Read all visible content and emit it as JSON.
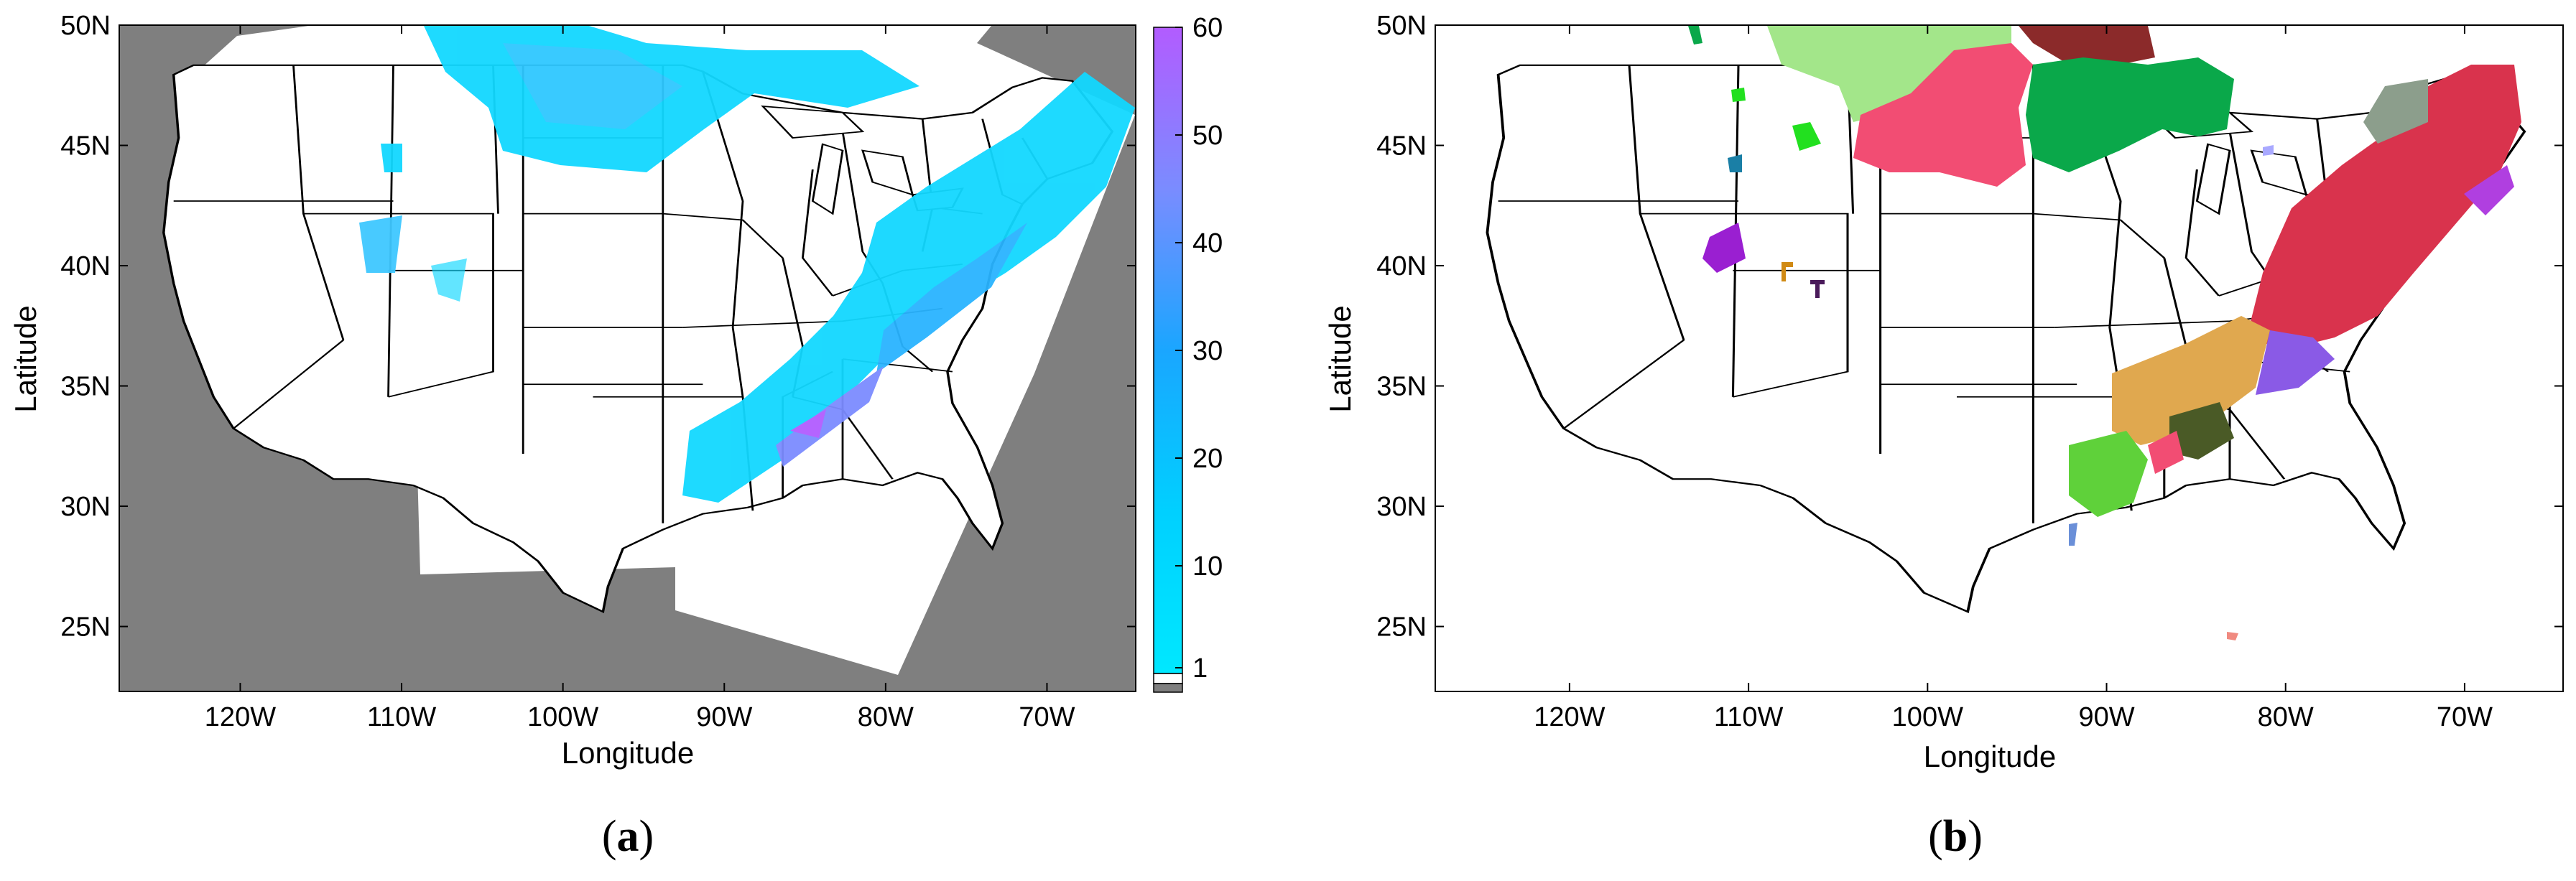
{
  "colors": {
    "nodata": "#7f7f7f",
    "land": "#ffffff",
    "border": "#000000",
    "cmap_low": "#00e8ff",
    "cmap_mid": "#1aa6ff",
    "cmap_high": "#b25cff"
  },
  "panels": [
    {
      "id": "a",
      "caption_open": "(",
      "caption_letter": "a",
      "caption_close": ")",
      "xlabel": "Longitude",
      "ylabel": "Latitude",
      "lon_range": [
        -127.5,
        -64.5
      ],
      "lat_range": [
        22.3,
        50.0
      ],
      "x_ticks": [
        {
          "value": -120,
          "label": "120W"
        },
        {
          "value": -110,
          "label": "110W"
        },
        {
          "value": -100,
          "label": "100W"
        },
        {
          "value": -90,
          "label": "90W"
        },
        {
          "value": -80,
          "label": "80W"
        },
        {
          "value": -70,
          "label": "70W"
        }
      ],
      "y_ticks": [
        {
          "value": 50,
          "label": "50N"
        },
        {
          "value": 45,
          "label": "45N"
        },
        {
          "value": 40,
          "label": "40N"
        },
        {
          "value": 35,
          "label": "35N"
        },
        {
          "value": 30,
          "label": "30N"
        },
        {
          "value": 25,
          "label": "25N"
        }
      ],
      "colorbar": {
        "range": [
          0,
          60
        ],
        "ticks": [
          {
            "value": 60,
            "label": "60"
          },
          {
            "value": 50,
            "label": "50"
          },
          {
            "value": 40,
            "label": "40"
          },
          {
            "value": 30,
            "label": "30"
          },
          {
            "value": 20,
            "label": "20"
          },
          {
            "value": 10,
            "label": "10"
          },
          {
            "value": 1,
            "label": "1"
          }
        ]
      }
    },
    {
      "id": "b",
      "caption_open": "(",
      "caption_letter": "b",
      "caption_close": ")",
      "xlabel": "Longitude",
      "ylabel": "Latitude",
      "lon_range": [
        -127.5,
        -64.5
      ],
      "lat_range": [
        22.3,
        50.0
      ],
      "x_ticks": [
        {
          "value": -120,
          "label": "120W"
        },
        {
          "value": -110,
          "label": "110W"
        },
        {
          "value": -100,
          "label": "100W"
        },
        {
          "value": -90,
          "label": "90W"
        },
        {
          "value": -80,
          "label": "80W"
        },
        {
          "value": -70,
          "label": "70W"
        }
      ],
      "y_ticks": [
        {
          "value": 50,
          "label": "50N"
        },
        {
          "value": 45,
          "label": "45N"
        },
        {
          "value": 40,
          "label": "40N"
        },
        {
          "value": 35,
          "label": "35N"
        },
        {
          "value": 30,
          "label": "30N"
        },
        {
          "value": 25,
          "label": "25N"
        }
      ],
      "cluster_colors": [
        {
          "name": "light-green-cluster",
          "color": "#a3e68a"
        },
        {
          "name": "dark-red-cluster",
          "color": "#8b2a2a"
        },
        {
          "name": "pink-cluster",
          "color": "#f24d73"
        },
        {
          "name": "green-cluster",
          "color": "#0aa84a"
        },
        {
          "name": "crimson-cluster",
          "color": "#d9334d"
        },
        {
          "name": "gray-green-cluster",
          "color": "#8c9e8c"
        },
        {
          "name": "orange-cluster",
          "color": "#e0a84f"
        },
        {
          "name": "violet-cluster",
          "color": "#8a5ae6"
        },
        {
          "name": "olive-cluster",
          "color": "#4a5a26"
        },
        {
          "name": "lime-cluster",
          "color": "#5fd13a"
        },
        {
          "name": "purple-cluster",
          "color": "#9a1fd1"
        },
        {
          "name": "teal-cluster",
          "color": "#1a7fa6"
        },
        {
          "name": "bright-green-cluster",
          "color": "#22e01f"
        }
      ]
    }
  ]
}
